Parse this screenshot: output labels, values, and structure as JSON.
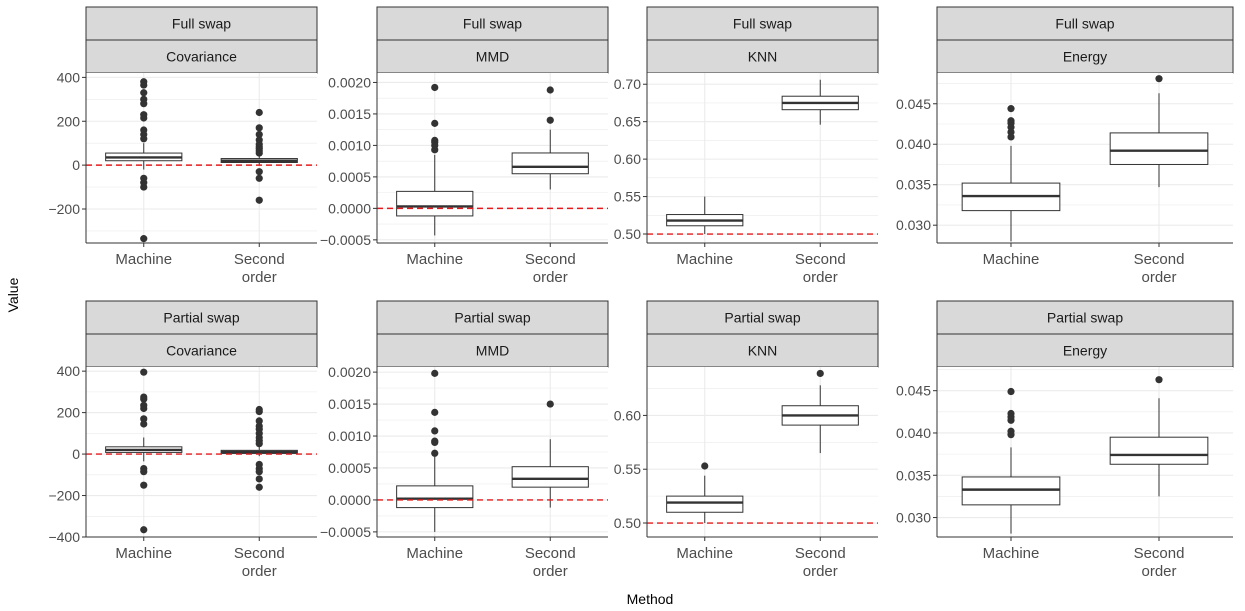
{
  "chart_data": {
    "type": "boxplot",
    "xlabel": "Method",
    "ylabel": "Value",
    "categories": [
      "Machine",
      "Second order"
    ],
    "reference_line": {
      "style": "dashed",
      "color": "#e41a1c"
    },
    "colors": {
      "strip_fill": "#d9d9d9",
      "grid": "#ebebeb",
      "box_stroke": "#333333",
      "tick_text": "#4d4d4d"
    },
    "panels": [
      {
        "row_label": "Full swap",
        "metric": "Covariance",
        "ylim": [
          -355,
          420
        ],
        "yticks": [
          400,
          200,
          0,
          -200
        ],
        "ytick_labels": [
          "400",
          "200",
          "0",
          "−200"
        ],
        "ref_y": 0,
        "boxes": [
          {
            "category": "Machine",
            "whisker_low": -20,
            "q1": 20,
            "median": 35,
            "q3": 55,
            "whisker_high": 100,
            "outliers": [
              380,
              365,
              330,
              300,
              280,
              230,
              215,
              160,
              140,
              120,
              -60,
              -80,
              -100,
              -335
            ]
          },
          {
            "category": "Second order",
            "whisker_low": 0,
            "q1": 12,
            "median": 20,
            "q3": 30,
            "whisker_high": 50,
            "outliers": [
              240,
              170,
              140,
              115,
              95,
              85,
              75,
              65,
              55,
              -30,
              -60,
              -160
            ]
          }
        ]
      },
      {
        "row_label": "Full swap",
        "metric": "MMD",
        "ylim": [
          -0.00055,
          0.00215
        ],
        "yticks": [
          0.002,
          0.0015,
          0.001,
          0.0005,
          0,
          -0.0005
        ],
        "ytick_labels": [
          "0.0020",
          "0.0015",
          "0.0010",
          "0.0005",
          "0.0000",
          "−0.0005"
        ],
        "ref_y": 0,
        "boxes": [
          {
            "category": "Machine",
            "whisker_low": -0.00043,
            "q1": -0.00012,
            "median": 3e-05,
            "q3": 0.00027,
            "whisker_high": 0.00085,
            "outliers": [
              0.00192,
              0.00135,
              0.00108,
              0.00105,
              0.001,
              0.00093
            ]
          },
          {
            "category": "Second order",
            "whisker_low": 0.0003,
            "q1": 0.00055,
            "median": 0.00066,
            "q3": 0.00088,
            "whisker_high": 0.00125,
            "outliers": [
              0.00188,
              0.0014
            ]
          }
        ]
      },
      {
        "row_label": "Full swap",
        "metric": "KNN",
        "ylim": [
          0.488,
          0.715
        ],
        "yticks": [
          0.7,
          0.65,
          0.6,
          0.55,
          0.5
        ],
        "ytick_labels": [
          "0.70",
          "0.65",
          "0.60",
          "0.55",
          "0.50"
        ],
        "ref_y": 0.5,
        "boxes": [
          {
            "category": "Machine",
            "whisker_low": 0.5,
            "q1": 0.511,
            "median": 0.518,
            "q3": 0.526,
            "whisker_high": 0.55,
            "outliers": []
          },
          {
            "category": "Second order",
            "whisker_low": 0.646,
            "q1": 0.666,
            "median": 0.675,
            "q3": 0.684,
            "whisker_high": 0.706,
            "outliers": []
          }
        ]
      },
      {
        "row_label": "Full swap",
        "metric": "Energy",
        "ylim": [
          0.0278,
          0.0488
        ],
        "yticks": [
          0.045,
          0.04,
          0.035,
          0.03
        ],
        "ytick_labels": [
          "0.045",
          "0.040",
          "0.035",
          "0.030"
        ],
        "ref_y": null,
        "boxes": [
          {
            "category": "Machine",
            "whisker_low": 0.028,
            "q1": 0.0318,
            "median": 0.0336,
            "q3": 0.0352,
            "whisker_high": 0.0398,
            "outliers": [
              0.0444,
              0.0429,
              0.0426,
              0.0421,
              0.0415,
              0.0409
            ]
          },
          {
            "category": "Second order",
            "whisker_low": 0.0347,
            "q1": 0.0375,
            "median": 0.0392,
            "q3": 0.0414,
            "whisker_high": 0.0463,
            "outliers": [
              0.0481
            ]
          }
        ]
      },
      {
        "row_label": "Partial swap",
        "metric": "Covariance",
        "ylim": [
          -400,
          420
        ],
        "yticks": [
          400,
          200,
          0,
          -200,
          -400
        ],
        "ytick_labels": [
          "400",
          "200",
          "0",
          "−200",
          "−400"
        ],
        "ref_y": 0,
        "boxes": [
          {
            "category": "Machine",
            "whisker_low": -35,
            "q1": 8,
            "median": 20,
            "q3": 35,
            "whisker_high": 80,
            "outliers": [
              395,
              275,
              265,
              235,
              220,
              170,
              145,
              -70,
              -85,
              -150,
              -365
            ]
          },
          {
            "category": "Second order",
            "whisker_low": -10,
            "q1": 3,
            "median": 10,
            "q3": 18,
            "whisker_high": 40,
            "outliers": [
              215,
              205,
              160,
              135,
              120,
              100,
              80,
              65,
              50,
              -50,
              -70,
              -85,
              -120,
              -160
            ]
          }
        ]
      },
      {
        "row_label": "Partial swap",
        "metric": "MMD",
        "ylim": [
          -0.00058,
          0.00208
        ],
        "yticks": [
          0.002,
          0.0015,
          0.001,
          0.0005,
          0,
          -0.0005
        ],
        "ytick_labels": [
          "0.0020",
          "0.0015",
          "0.0010",
          "0.0005",
          "0.0000",
          "−0.0005"
        ],
        "ref_y": 0,
        "boxes": [
          {
            "category": "Machine",
            "whisker_low": -0.0005,
            "q1": -0.00012,
            "median": 2e-05,
            "q3": 0.00022,
            "whisker_high": 0.00068,
            "outliers": [
              0.00198,
              0.00137,
              0.00108,
              0.00092,
              0.0009,
              0.00073
            ]
          },
          {
            "category": "Second order",
            "whisker_low": -0.00012,
            "q1": 0.0002,
            "median": 0.00033,
            "q3": 0.00052,
            "whisker_high": 0.00095,
            "outliers": [
              0.0015
            ]
          }
        ]
      },
      {
        "row_label": "Partial swap",
        "metric": "KNN",
        "ylim": [
          0.487,
          0.645
        ],
        "yticks": [
          0.6,
          0.55,
          0.5
        ],
        "ytick_labels": [
          "0.60",
          "0.55",
          "0.50"
        ],
        "ref_y": 0.5,
        "boxes": [
          {
            "category": "Machine",
            "whisker_low": 0.5,
            "q1": 0.51,
            "median": 0.519,
            "q3": 0.525,
            "whisker_high": 0.544,
            "outliers": [
              0.553
            ]
          },
          {
            "category": "Second order",
            "whisker_low": 0.565,
            "q1": 0.591,
            "median": 0.6,
            "q3": 0.609,
            "whisker_high": 0.628,
            "outliers": [
              0.639
            ]
          }
        ]
      },
      {
        "row_label": "Partial swap",
        "metric": "Energy",
        "ylim": [
          0.0277,
          0.0478
        ],
        "yticks": [
          0.045,
          0.04,
          0.035,
          0.03
        ],
        "ytick_labels": [
          "0.045",
          "0.040",
          "0.035",
          "0.030"
        ],
        "ref_y": null,
        "boxes": [
          {
            "category": "Machine",
            "whisker_low": 0.0281,
            "q1": 0.0315,
            "median": 0.0333,
            "q3": 0.0348,
            "whisker_high": 0.0383,
            "outliers": [
              0.0449,
              0.0423,
              0.0419,
              0.0415,
              0.0402,
              0.0398
            ]
          },
          {
            "category": "Second order",
            "whisker_low": 0.0325,
            "q1": 0.0363,
            "median": 0.0374,
            "q3": 0.0395,
            "whisker_high": 0.0441,
            "outliers": [
              0.0463
            ]
          }
        ]
      }
    ]
  }
}
